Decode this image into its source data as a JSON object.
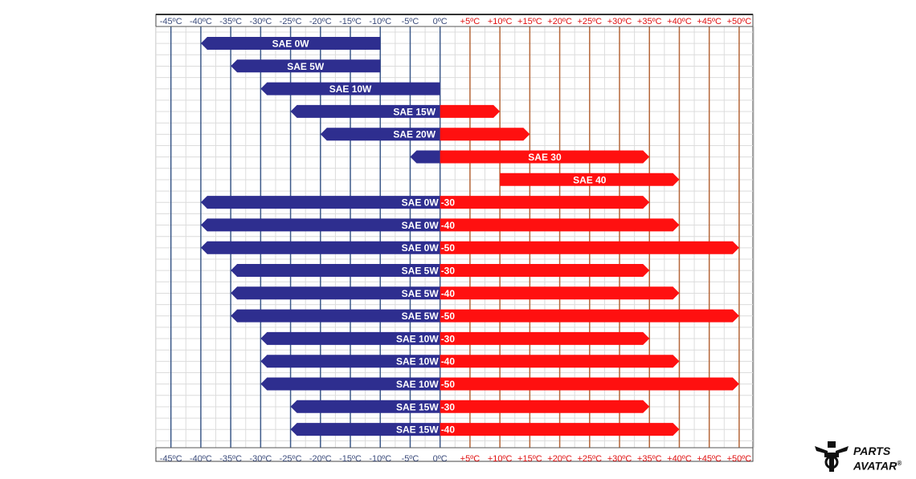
{
  "chart_data": {
    "type": "bar",
    "orientation": "horizontal-range",
    "x_ticks": [
      "-45ºC",
      "-40ºC",
      "-35ºC",
      "-30ºC",
      "-25ºC",
      "-20ºC",
      "-15ºC",
      "-10ºC",
      "-5ºC",
      "0ºC",
      "+5ºC",
      "+10ºC",
      "+15ºC",
      "+20ºC",
      "+25ºC",
      "+30ºC",
      "+35ºC",
      "+40ºC",
      "+45ºC",
      "+50ºC"
    ],
    "x_tick_values": [
      -45,
      -40,
      -35,
      -30,
      -25,
      -20,
      -15,
      -10,
      -5,
      0,
      5,
      10,
      15,
      20,
      25,
      30,
      35,
      40,
      45,
      50
    ],
    "xlim": [
      -47.5,
      52.5
    ],
    "grid": true,
    "colors": {
      "cold": "#2e2e8f",
      "hot": "#ff1010",
      "cold_axis": "#3d5a8a",
      "hot_axis": "#b5673a",
      "hot_tick_text": "#e01010",
      "cold_tick_text": "#3a4a7a"
    },
    "series": [
      {
        "label": "SAE 0W",
        "min": -40,
        "max": -10
      },
      {
        "label": "SAE 5W",
        "min": -35,
        "max": -10
      },
      {
        "label": "SAE 10W",
        "min": -30,
        "max": 0
      },
      {
        "label": "SAE 15W",
        "min": -25,
        "max": 10
      },
      {
        "label": "SAE 20W",
        "min": -20,
        "max": 15
      },
      {
        "label": "SAE 30",
        "min": -5,
        "max": 35
      },
      {
        "label": "SAE 40",
        "min": 10,
        "max": 40
      },
      {
        "label": "SAE 0W",
        "suffix": "-30",
        "min": -40,
        "max": 35
      },
      {
        "label": "SAE 0W",
        "suffix": "-40",
        "min": -40,
        "max": 40
      },
      {
        "label": "SAE 0W",
        "suffix": "-50",
        "min": -40,
        "max": 50
      },
      {
        "label": "SAE 5W",
        "suffix": "-30",
        "min": -35,
        "max": 35
      },
      {
        "label": "SAE 5W",
        "suffix": "-40",
        "min": -35,
        "max": 40
      },
      {
        "label": "SAE 5W",
        "suffix": "-50",
        "min": -35,
        "max": 50
      },
      {
        "label": "SAE 10W",
        "suffix": "-30",
        "min": -30,
        "max": 35
      },
      {
        "label": "SAE 10W",
        "suffix": "-40",
        "min": -30,
        "max": 40
      },
      {
        "label": "SAE 10W",
        "suffix": "-50",
        "min": -30,
        "max": 50
      },
      {
        "label": "SAE 15W",
        "suffix": "-30",
        "min": -25,
        "max": 35
      },
      {
        "label": "SAE 15W",
        "suffix": "-40",
        "min": -25,
        "max": 40
      }
    ]
  },
  "logo": {
    "line1": "PARTS",
    "line2": "AVATAR",
    "mark": "®"
  }
}
